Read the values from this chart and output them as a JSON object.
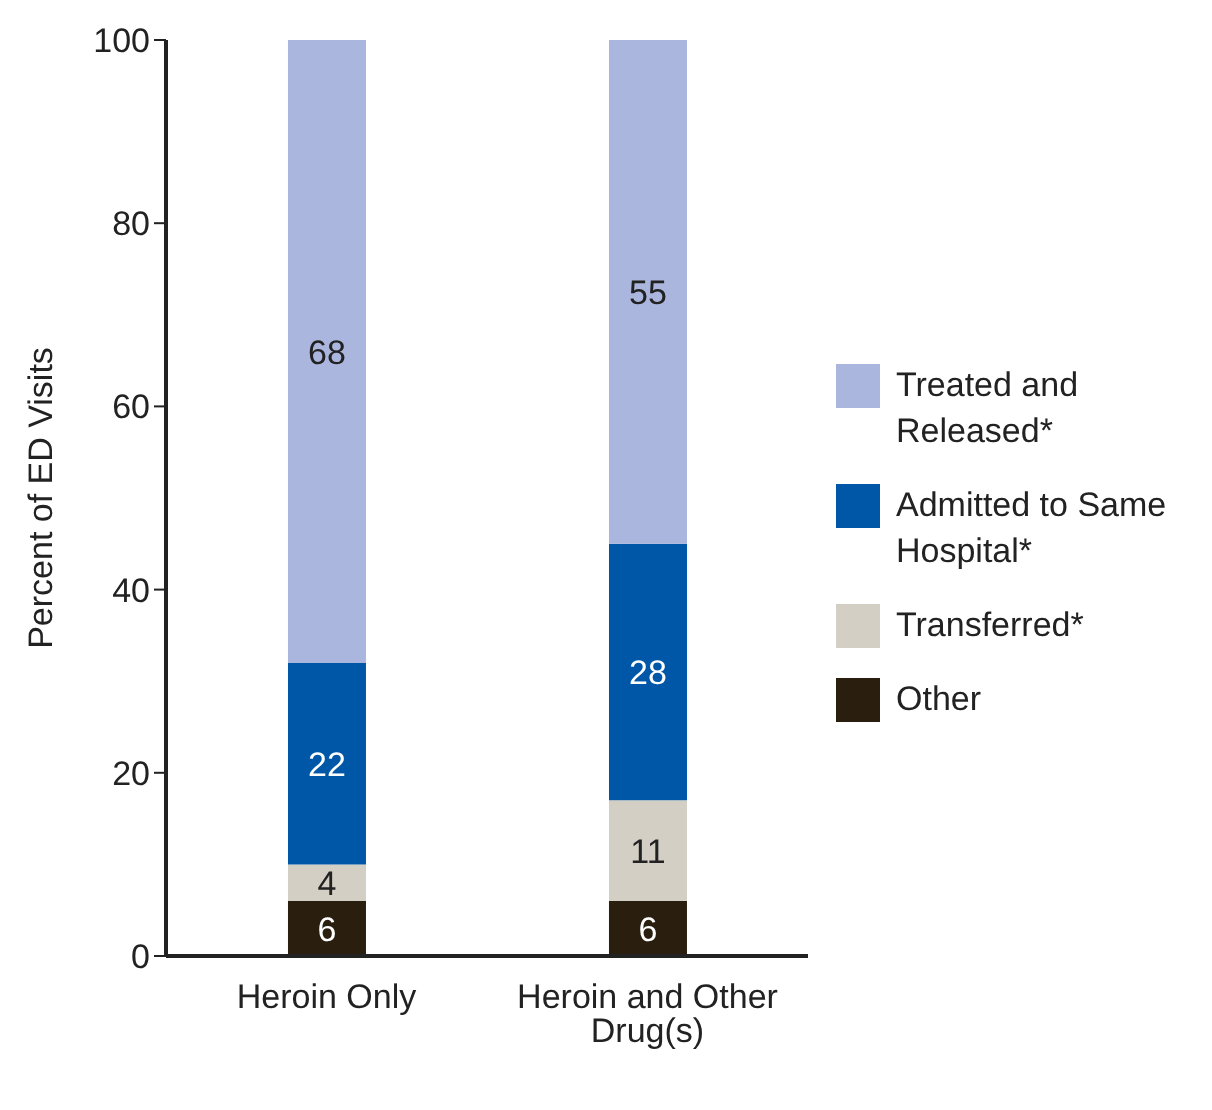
{
  "chart_data": {
    "type": "bar",
    "stacked": true,
    "ylabel": "Percent of ED Visits",
    "categories": [
      "Heroin Only",
      "Heroin and Other Drug(s)"
    ],
    "ylim": [
      0,
      100
    ],
    "yticks": [
      0,
      20,
      40,
      60,
      80,
      100
    ],
    "grid": false,
    "legend": "right",
    "data_labels": true,
    "series": [
      {
        "name": "Other",
        "color": "#2a1e0e",
        "values": [
          6,
          6
        ]
      },
      {
        "name": "Transferred*",
        "color": "#d3cfc4",
        "values": [
          4,
          11
        ]
      },
      {
        "name": "Admitted to Same Hospital*",
        "color": "#0057a8",
        "values": [
          22,
          28
        ]
      },
      {
        "name": "Treated and Released*",
        "color": "#aab6dd",
        "values": [
          68,
          55
        ]
      }
    ]
  }
}
